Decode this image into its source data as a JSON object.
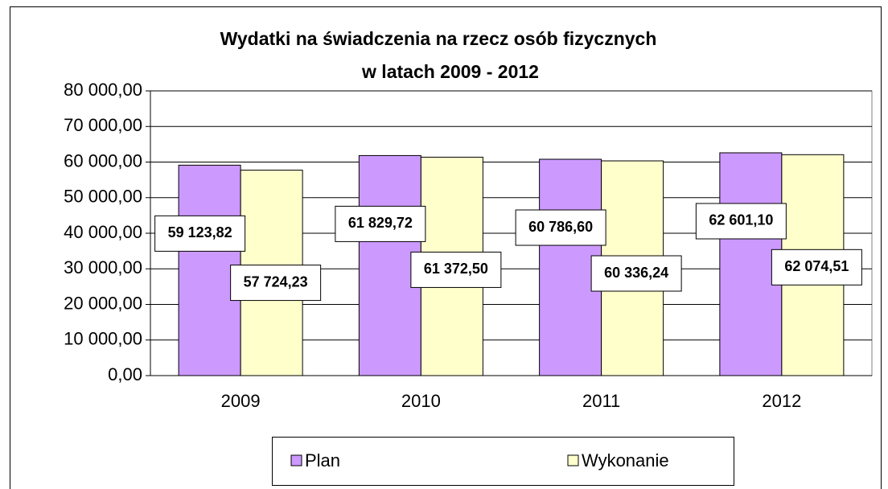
{
  "chart_data": {
    "type": "bar",
    "title": [
      "Wydatki na świadczenia na rzecz osób fizycznych",
      "w latach 2009 - 2012"
    ],
    "categories": [
      "2009",
      "2010",
      "2011",
      "2012"
    ],
    "series": [
      {
        "name": "Plan",
        "color": "#cc99ff",
        "values": [
          59123.82,
          61829.72,
          60786.6,
          62601.1
        ],
        "value_labels": [
          "59 123,82",
          "61 829,72",
          "60 786,60",
          "62 601,10"
        ]
      },
      {
        "name": "Wykonanie",
        "color": "#ffffcc",
        "values": [
          57724.23,
          61372.5,
          60336.24,
          62074.51
        ],
        "value_labels": [
          "57 724,23",
          "61 372,50",
          "60 336,24",
          "62 074,51"
        ]
      }
    ],
    "ylim": [
      0,
      80000
    ],
    "yticks": [
      {
        "value": 0,
        "label": "0,00"
      },
      {
        "value": 10000,
        "label": "10 000,00"
      },
      {
        "value": 20000,
        "label": "20 000,00"
      },
      {
        "value": 30000,
        "label": "30 000,00"
      },
      {
        "value": 40000,
        "label": "40 000,00"
      },
      {
        "value": 50000,
        "label": "50 000,00"
      },
      {
        "value": 60000,
        "label": "60 000,00"
      },
      {
        "value": 70000,
        "label": "70 000,00"
      },
      {
        "value": 80000,
        "label": "80 000,00"
      }
    ],
    "grid": true
  }
}
